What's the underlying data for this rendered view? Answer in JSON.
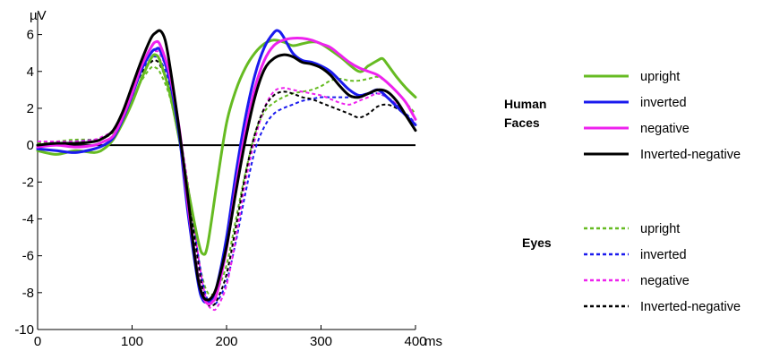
{
  "chart_data": {
    "type": "line",
    "title": "",
    "xlabel": "ms",
    "ylabel": "µV",
    "xlim": [
      0,
      400
    ],
    "ylim": [
      -10,
      7
    ],
    "x_ticks": [
      0,
      100,
      200,
      300,
      400
    ],
    "y_ticks": [
      6,
      4,
      2,
      0,
      -2,
      -4,
      -6,
      -8,
      -10
    ],
    "zero_line": true,
    "grid": false,
    "legend_position": "right",
    "legend_groups": [
      {
        "label": "Human Faces",
        "label_lines": [
          "Human",
          "Faces"
        ],
        "style": "solid",
        "entries": [
          "upright",
          "inverted",
          "negative",
          "Inverted-negative"
        ]
      },
      {
        "label": "Eyes",
        "label_lines": [
          "Eyes"
        ],
        "style": "dashed",
        "entries": [
          "upright",
          "inverted",
          "negative",
          "Inverted-negative"
        ]
      }
    ],
    "colors": {
      "upright": "#66bb22",
      "inverted": "#1a1aee",
      "negative": "#ee22ee",
      "Inverted-negative": "#000000"
    },
    "series": [
      {
        "name": "upright",
        "group": "Human Faces",
        "style": "solid",
        "color": "#66bb22",
        "x": [
          0,
          20,
          40,
          60,
          70,
          80,
          90,
          100,
          110,
          120,
          125,
          130,
          140,
          150,
          160,
          170,
          175,
          180,
          190,
          200,
          210,
          220,
          230,
          240,
          250,
          260,
          270,
          280,
          290,
          300,
          320,
          340,
          350,
          360,
          365,
          370,
          380,
          390,
          400
        ],
        "y": [
          -0.3,
          -0.5,
          -0.3,
          -0.4,
          -0.2,
          0.3,
          1.2,
          2.3,
          3.6,
          4.7,
          4.9,
          4.5,
          2.8,
          0.3,
          -2.6,
          -5.2,
          -5.9,
          -5.4,
          -2.0,
          1.2,
          3.0,
          4.2,
          5.0,
          5.5,
          5.7,
          5.6,
          5.4,
          5.5,
          5.6,
          5.5,
          4.8,
          4.0,
          4.3,
          4.6,
          4.7,
          4.4,
          3.7,
          3.1,
          2.6
        ]
      },
      {
        "name": "inverted",
        "group": "Human Faces",
        "style": "solid",
        "color": "#1a1aee",
        "x": [
          0,
          20,
          40,
          60,
          70,
          80,
          90,
          100,
          110,
          120,
          125,
          130,
          140,
          150,
          155,
          160,
          170,
          175,
          180,
          185,
          190,
          200,
          210,
          220,
          230,
          240,
          250,
          255,
          260,
          270,
          280,
          290,
          300,
          310,
          320,
          330,
          340,
          350,
          360,
          370,
          380,
          390,
          400
        ],
        "y": [
          -0.2,
          -0.3,
          -0.4,
          -0.2,
          0.0,
          0.4,
          1.4,
          2.7,
          4.1,
          5.0,
          5.2,
          5.1,
          3.5,
          0.5,
          -1.8,
          -4.0,
          -7.5,
          -8.4,
          -8.5,
          -8.3,
          -7.6,
          -5.0,
          -1.5,
          1.5,
          3.8,
          5.3,
          6.1,
          6.2,
          5.9,
          5.0,
          4.6,
          4.5,
          4.3,
          4.0,
          3.5,
          3.0,
          2.7,
          2.8,
          3.0,
          2.6,
          2.1,
          1.6,
          1.1
        ]
      },
      {
        "name": "negative",
        "group": "Human Faces",
        "style": "solid",
        "color": "#ee22ee",
        "x": [
          0,
          20,
          40,
          60,
          70,
          80,
          90,
          100,
          110,
          120,
          125,
          130,
          140,
          150,
          155,
          160,
          170,
          175,
          180,
          185,
          190,
          200,
          210,
          220,
          230,
          240,
          250,
          260,
          270,
          280,
          290,
          300,
          310,
          320,
          330,
          340,
          350,
          360,
          370,
          380,
          390,
          400
        ],
        "y": [
          -0.1,
          0.0,
          -0.1,
          0.0,
          0.2,
          0.5,
          1.5,
          2.8,
          4.3,
          5.3,
          5.6,
          5.4,
          3.8,
          0.9,
          -1.3,
          -3.6,
          -7.2,
          -8.2,
          -8.6,
          -8.5,
          -8.0,
          -5.6,
          -2.2,
          0.8,
          3.1,
          4.6,
          5.4,
          5.7,
          5.8,
          5.8,
          5.7,
          5.5,
          5.3,
          4.9,
          4.5,
          4.2,
          4.0,
          3.8,
          3.4,
          2.9,
          2.3,
          1.4
        ]
      },
      {
        "name": "Inverted-negative",
        "group": "Human Faces",
        "style": "solid",
        "color": "#000000",
        "x": [
          0,
          20,
          40,
          60,
          70,
          80,
          90,
          100,
          110,
          120,
          125,
          130,
          135,
          140,
          150,
          160,
          165,
          170,
          175,
          180,
          185,
          190,
          200,
          210,
          220,
          230,
          240,
          250,
          260,
          270,
          280,
          290,
          300,
          310,
          320,
          330,
          340,
          350,
          360,
          370,
          380,
          390,
          400
        ],
        "y": [
          0.0,
          0.1,
          0.1,
          0.2,
          0.4,
          0.8,
          1.8,
          3.2,
          4.6,
          5.8,
          6.1,
          6.2,
          5.7,
          4.3,
          0.8,
          -3.2,
          -5.5,
          -7.3,
          -8.2,
          -8.4,
          -8.2,
          -7.6,
          -5.5,
          -2.5,
          0.3,
          2.6,
          4.1,
          4.7,
          4.9,
          4.8,
          4.5,
          4.4,
          4.2,
          3.8,
          3.2,
          2.7,
          2.6,
          2.8,
          3.0,
          2.9,
          2.4,
          1.6,
          0.8
        ]
      },
      {
        "name": "upright",
        "group": "Eyes",
        "style": "dashed",
        "color": "#66bb22",
        "x": [
          0,
          20,
          40,
          60,
          70,
          80,
          90,
          100,
          110,
          120,
          125,
          130,
          140,
          150,
          160,
          170,
          175,
          180,
          185,
          190,
          200,
          210,
          220,
          230,
          240,
          250,
          260,
          270,
          280,
          290,
          300,
          310,
          320,
          330,
          340,
          350,
          360,
          370,
          380,
          390,
          400
        ],
        "y": [
          0.1,
          0.2,
          0.3,
          0.3,
          0.4,
          0.7,
          1.5,
          2.5,
          3.5,
          4.2,
          4.2,
          3.9,
          2.6,
          0.2,
          -2.8,
          -6.0,
          -7.3,
          -8.0,
          -8.1,
          -7.9,
          -6.5,
          -4.0,
          -1.5,
          0.6,
          1.8,
          2.3,
          2.6,
          2.8,
          2.9,
          3.0,
          3.2,
          3.5,
          3.6,
          3.5,
          3.5,
          3.6,
          3.7,
          3.4,
          2.9,
          2.3,
          1.7
        ]
      },
      {
        "name": "inverted",
        "group": "Eyes",
        "style": "dashed",
        "color": "#1a1aee",
        "x": [
          0,
          20,
          40,
          60,
          70,
          80,
          90,
          100,
          110,
          120,
          125,
          130,
          140,
          150,
          160,
          170,
          175,
          180,
          185,
          190,
          200,
          210,
          220,
          230,
          240,
          250,
          260,
          270,
          280,
          290,
          300,
          310,
          320,
          330,
          340,
          350,
          360,
          370,
          380,
          390,
          400
        ],
        "y": [
          0.0,
          0.1,
          0.2,
          0.3,
          0.4,
          0.8,
          1.7,
          2.9,
          4.0,
          4.7,
          4.8,
          4.6,
          3.3,
          0.6,
          -2.6,
          -6.0,
          -7.5,
          -8.4,
          -8.6,
          -8.5,
          -7.4,
          -5.2,
          -2.6,
          -0.3,
          1.0,
          1.7,
          2.0,
          2.2,
          2.4,
          2.5,
          2.6,
          2.6,
          2.6,
          2.6,
          2.7,
          2.8,
          2.8,
          2.6,
          2.2,
          1.7,
          1.2
        ]
      },
      {
        "name": "negative",
        "group": "Eyes",
        "style": "dashed",
        "color": "#ee22ee",
        "x": [
          0,
          20,
          40,
          60,
          70,
          80,
          90,
          100,
          110,
          120,
          125,
          130,
          140,
          150,
          160,
          170,
          175,
          180,
          185,
          190,
          200,
          210,
          220,
          230,
          240,
          250,
          260,
          270,
          280,
          290,
          300,
          310,
          320,
          330,
          340,
          350,
          360,
          370,
          380,
          390,
          400
        ],
        "y": [
          0.2,
          0.2,
          0.2,
          0.3,
          0.5,
          0.8,
          1.7,
          3.0,
          4.2,
          5.0,
          5.1,
          4.9,
          3.6,
          0.8,
          -2.4,
          -6.0,
          -7.6,
          -8.6,
          -8.9,
          -8.8,
          -7.6,
          -5.0,
          -2.0,
          0.3,
          2.0,
          2.9,
          3.1,
          3.0,
          2.9,
          2.8,
          2.7,
          2.5,
          2.3,
          2.2,
          2.4,
          2.6,
          2.8,
          2.6,
          2.2,
          1.6,
          1.2
        ]
      },
      {
        "name": "Inverted-negative",
        "group": "Eyes",
        "style": "dashed",
        "color": "#000000",
        "x": [
          0,
          20,
          40,
          60,
          70,
          80,
          90,
          100,
          110,
          120,
          125,
          130,
          140,
          150,
          160,
          170,
          175,
          180,
          185,
          190,
          200,
          210,
          220,
          230,
          240,
          250,
          260,
          270,
          280,
          290,
          300,
          310,
          320,
          330,
          340,
          350,
          360,
          370,
          380,
          390,
          400
        ],
        "y": [
          0.0,
          0.0,
          0.1,
          0.2,
          0.4,
          0.8,
          1.6,
          2.8,
          3.9,
          4.5,
          4.6,
          4.3,
          3.0,
          0.5,
          -2.8,
          -6.4,
          -7.9,
          -8.6,
          -8.7,
          -8.4,
          -7.0,
          -4.4,
          -1.6,
          0.6,
          2.0,
          2.7,
          2.9,
          2.8,
          2.6,
          2.5,
          2.3,
          2.1,
          1.9,
          1.7,
          1.5,
          1.7,
          2.1,
          2.2,
          2.0,
          1.6,
          1.1
        ]
      }
    ]
  }
}
